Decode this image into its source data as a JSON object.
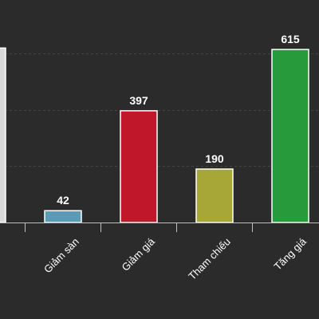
{
  "chart_data": {
    "type": "bar",
    "title": "",
    "xlabel": "",
    "ylabel": "",
    "categories": [
      "",
      "Giảm sàn",
      "Giảm giá",
      "Tham chiếu",
      "Tăng giá"
    ],
    "values": [
      620,
      42,
      397,
      190,
      615
    ],
    "value_labels": [
      "",
      "42",
      "397",
      "190",
      "615"
    ],
    "colors": [
      "#d9d9d9",
      "#5b9bb6",
      "#c0172b",
      "#a6a736",
      "#279a3c"
    ],
    "ylim": [
      0,
      700
    ],
    "grid": true,
    "legend": "none"
  }
}
